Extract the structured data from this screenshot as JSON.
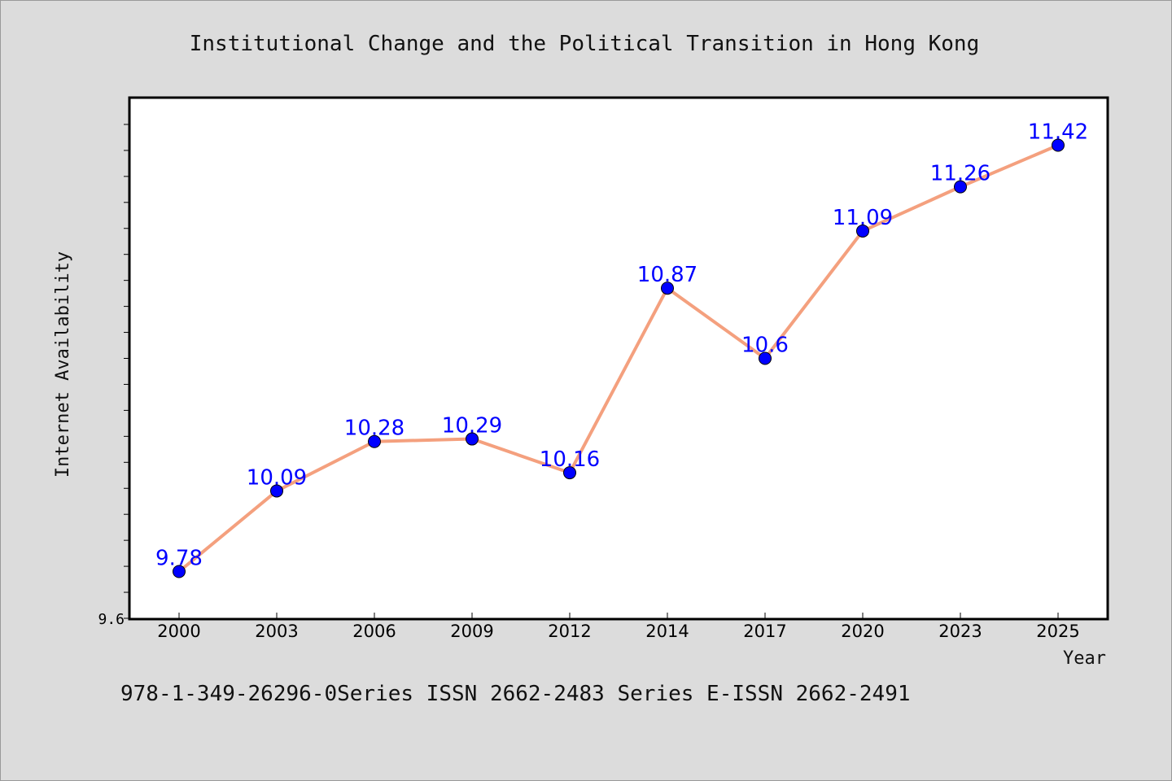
{
  "chart_data": {
    "type": "line",
    "title": "Institutional Change and the Political Transition in Hong Kong",
    "xlabel": "Year",
    "ylabel": "Internet Availability",
    "categories": [
      "2000",
      "2003",
      "2006",
      "2009",
      "2012",
      "2014",
      "2017",
      "2020",
      "2023",
      "2025"
    ],
    "series": [
      {
        "values": [
          9.78,
          10.09,
          10.28,
          10.29,
          10.16,
          10.87,
          10.6,
          11.09,
          11.26,
          11.42
        ],
        "data_labels": [
          "9.78",
          "10.09",
          "10.28",
          "10.29",
          "10.16",
          "10.87",
          "10.6",
          "11.09",
          "11.26",
          "11.42"
        ]
      }
    ],
    "ylim": [
      9.6,
      11.6
    ],
    "y_tick_labels": [
      "9.6"
    ],
    "grid": false,
    "colors": {
      "line": "#f4a07e",
      "marker": "#0000ff",
      "labels": "#0000ff",
      "background": "#dcdcdc",
      "plot_area": "#ffffff"
    }
  },
  "footer": {
    "text": "978-1-349-26296-0Series ISSN 2662-2483 Series E-ISSN 2662-2491"
  }
}
